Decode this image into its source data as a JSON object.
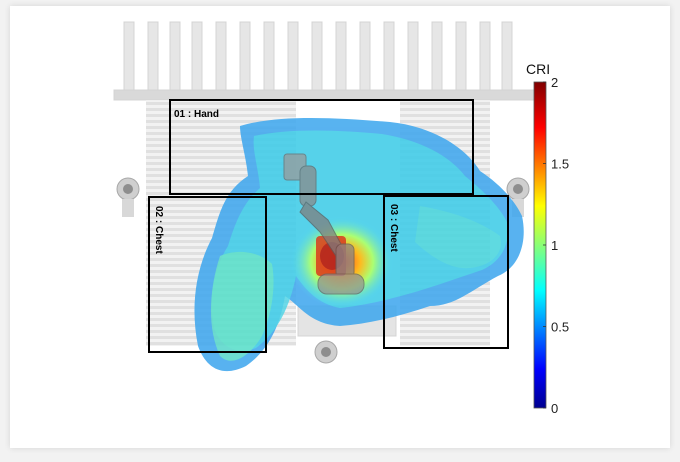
{
  "colorbar": {
    "title": "CRI",
    "min": 0,
    "max": 2,
    "ticks": [
      {
        "value": 0,
        "label": "0"
      },
      {
        "value": 0.5,
        "label": "0.5"
      },
      {
        "value": 1,
        "label": "1"
      },
      {
        "value": 1.5,
        "label": "1.5"
      },
      {
        "value": 2,
        "label": "2"
      }
    ],
    "colormap": [
      "#00008f",
      "#0000ff",
      "#0080ff",
      "#00ffff",
      "#80ff80",
      "#ffff00",
      "#ff8000",
      "#ff0000",
      "#800000"
    ]
  },
  "zones": [
    {
      "id": "01",
      "label": "01 : Hand"
    },
    {
      "id": "02",
      "label": "02 : Chest"
    },
    {
      "id": "03",
      "label": "03 : Chest"
    }
  ]
}
